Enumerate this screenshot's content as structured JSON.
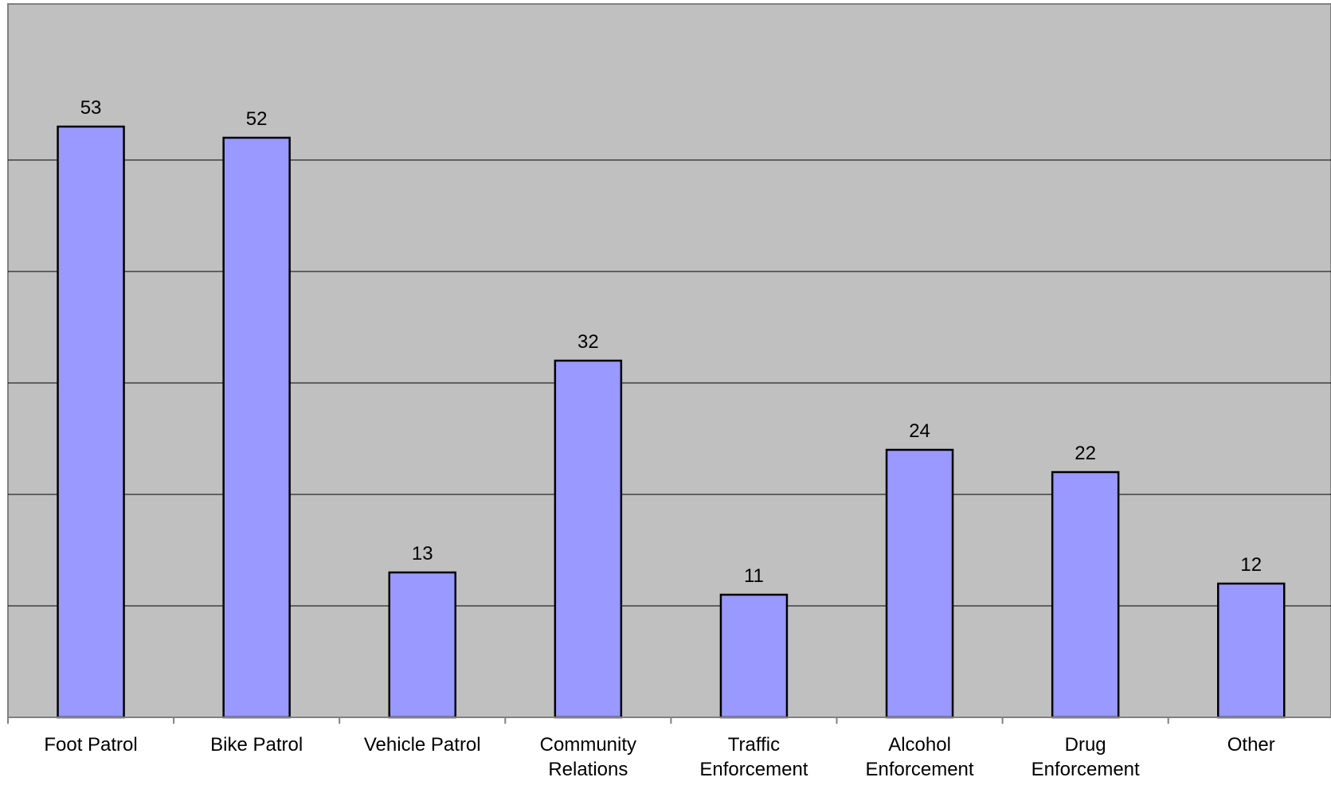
{
  "chart_data": {
    "type": "bar",
    "categories": [
      "Foot Patrol",
      "Bike Patrol",
      "Vehicle Patrol",
      "Community Relations",
      "Traffic Enforcement",
      "Alcohol Enforcement",
      "Drug Enforcement",
      "Other"
    ],
    "category_lines": [
      [
        "Foot Patrol"
      ],
      [
        "Bike Patrol"
      ],
      [
        "Vehicle Patrol"
      ],
      [
        "Community",
        "Relations"
      ],
      [
        "Traffic",
        "Enforcement"
      ],
      [
        "Alcohol",
        "Enforcement"
      ],
      [
        "Drug",
        "Enforcement"
      ],
      [
        "Other"
      ]
    ],
    "values": [
      53,
      52,
      13,
      32,
      11,
      24,
      22,
      12
    ],
    "data_labels": [
      "53",
      "52",
      "13",
      "32",
      "11",
      "24",
      "22",
      "12"
    ],
    "ylim": [
      0,
      60
    ],
    "gridlines_y": [
      10,
      20,
      30,
      40,
      50
    ],
    "grid": true,
    "legend": "none",
    "colors": {
      "plot_background": "#c0c0c0",
      "bar_fill": "#9999ff",
      "bar_stroke": "#000000",
      "gridline": "#000000",
      "axis": "#808080"
    }
  }
}
